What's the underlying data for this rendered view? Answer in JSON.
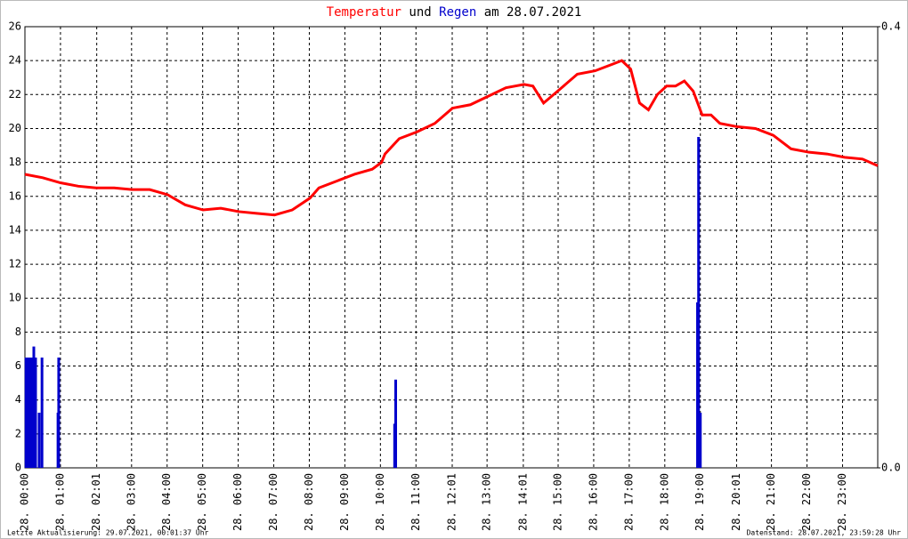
{
  "chart_data": {
    "type": "line",
    "title_parts": [
      "und",
      "am 28.07.2021"
    ],
    "xlim": [
      0,
      23.99
    ],
    "xticks": [
      {
        "value": 0,
        "label": "28. 00:00"
      },
      {
        "value": 1,
        "label": "28. 01:00"
      },
      {
        "value": 2.02,
        "label": "28. 02:01"
      },
      {
        "value": 3,
        "label": "28. 03:00"
      },
      {
        "value": 4,
        "label": "28. 04:00"
      },
      {
        "value": 5,
        "label": "28. 05:00"
      },
      {
        "value": 6,
        "label": "28. 06:00"
      },
      {
        "value": 7,
        "label": "28. 07:00"
      },
      {
        "value": 8,
        "label": "28. 08:00"
      },
      {
        "value": 9,
        "label": "28. 09:00"
      },
      {
        "value": 10,
        "label": "28. 10:00"
      },
      {
        "value": 11,
        "label": "28. 11:00"
      },
      {
        "value": 12.02,
        "label": "28. 12:01"
      },
      {
        "value": 13,
        "label": "28. 13:00"
      },
      {
        "value": 14.02,
        "label": "28. 14:01"
      },
      {
        "value": 15,
        "label": "28. 15:00"
      },
      {
        "value": 16,
        "label": "28. 16:00"
      },
      {
        "value": 17,
        "label": "28. 17:00"
      },
      {
        "value": 18,
        "label": "28. 18:00"
      },
      {
        "value": 19,
        "label": "28. 19:00"
      },
      {
        "value": 20.02,
        "label": "28. 20:01"
      },
      {
        "value": 21,
        "label": "28. 21:00"
      },
      {
        "value": 22,
        "label": "28. 22:00"
      },
      {
        "value": 23,
        "label": "28. 23:00"
      }
    ],
    "ylim": [
      0,
      26
    ],
    "yticks": [
      0,
      2,
      4,
      6,
      8,
      10,
      12,
      14,
      16,
      18,
      20,
      22,
      24,
      26
    ],
    "y2lim": [
      0,
      0.4
    ],
    "y2ticks": [
      {
        "value": 0,
        "label": "0.0"
      },
      0.4
    ],
    "grid": true,
    "series": [
      {
        "name": "Temperatur",
        "color": "#ff0000",
        "type": "line",
        "x": [
          0,
          0.5,
          1.0,
          1.5,
          2.0,
          2.51,
          3.01,
          3.51,
          4.01,
          4.51,
          5.01,
          5.51,
          6.02,
          6.52,
          7.02,
          7.52,
          8.02,
          8.27,
          8.77,
          9.27,
          9.77,
          10.03,
          10.13,
          10.53,
          11.03,
          11.53,
          12.03,
          12.53,
          13.03,
          13.53,
          14.04,
          14.29,
          14.59,
          15.04,
          15.54,
          16.04,
          16.54,
          16.79,
          17.04,
          17.29,
          17.54,
          17.79,
          18.05,
          18.3,
          18.55,
          18.8,
          19.05,
          19.3,
          19.55,
          20.05,
          20.55,
          21.05,
          21.55,
          22.06,
          22.56,
          23.06,
          23.56,
          23.99
        ],
        "values": [
          17.3,
          17.1,
          16.8,
          16.6,
          16.5,
          16.5,
          16.4,
          16.4,
          16.1,
          15.5,
          15.2,
          15.3,
          15.1,
          15.0,
          14.9,
          15.2,
          15.9,
          16.5,
          16.9,
          17.3,
          17.6,
          18.0,
          18.5,
          19.4,
          19.8,
          20.3,
          21.2,
          21.4,
          21.9,
          22.4,
          22.6,
          22.5,
          21.5,
          22.3,
          23.2,
          23.4,
          23.8,
          24.0,
          23.5,
          21.5,
          21.1,
          22.0,
          22.5,
          22.5,
          22.8,
          22.2,
          20.8,
          20.8,
          20.3,
          20.1,
          20.0,
          19.6,
          18.8,
          18.6,
          18.5,
          18.3,
          18.2,
          17.8
        ]
      },
      {
        "name": "Regen",
        "color": "#0000cc",
        "type": "bar",
        "axis": "y2",
        "x": [
          0.03,
          0.08,
          0.13,
          0.18,
          0.25,
          0.3,
          0.4,
          0.48,
          0.93,
          0.95,
          10.4,
          10.43,
          18.92,
          18.95,
          19.0
        ],
        "values": [
          0.1,
          0.1,
          0.1,
          0.1,
          0.11,
          0.1,
          0.05,
          0.1,
          0.05,
          0.1,
          0.04,
          0.08,
          0.15,
          0.3,
          0.05
        ]
      }
    ]
  },
  "footer": {
    "left": "Letzte Aktualisierung: 29.07.2021, 00:01:37 Uhr",
    "right": "Datenstand: 28.07.2021, 23:59:28 Uhr"
  }
}
